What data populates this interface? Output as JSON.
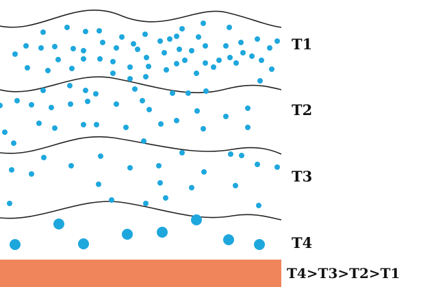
{
  "layers": [
    {
      "label": "T1"
    },
    {
      "label": "T2"
    },
    {
      "label": "T3"
    },
    {
      "label": "T4"
    }
  ],
  "order_statement": "T4>T3>T2>T1",
  "colors": {
    "dots": "#1ea7dd",
    "boundary": "#222222",
    "base_bar": "#f0855c",
    "text": "#111111"
  }
}
